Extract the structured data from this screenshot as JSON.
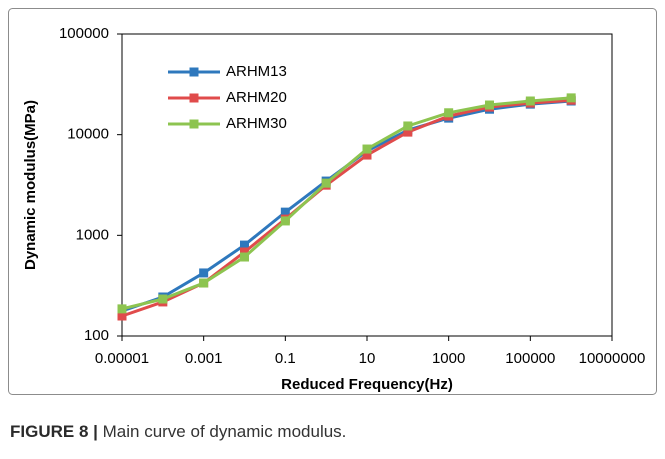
{
  "chart_data": {
    "type": "line",
    "x_label": "Reduced  Frequency(Hz)",
    "y_label": "Dynamic modulus(MPa)",
    "x": [
      1e-05,
      0.0001,
      0.001,
      0.01,
      0.1,
      1,
      10,
      100,
      1000,
      10000,
      100000,
      1000000
    ],
    "series": [
      {
        "name": "ARHM13",
        "color": "#2e78bd",
        "values": [
          177,
          244,
          423,
          800,
          1700,
          3460,
          6870,
          11100,
          14600,
          17900,
          20100,
          21600
        ]
      },
      {
        "name": "ARHM20",
        "color": "#e04b4b",
        "values": [
          158,
          218,
          336,
          683,
          1450,
          3150,
          6270,
          10600,
          15300,
          18800,
          20600,
          22000
        ]
      },
      {
        "name": "ARHM30",
        "color": "#8dc450",
        "values": [
          186,
          233,
          336,
          609,
          1390,
          3300,
          7200,
          12200,
          16500,
          19700,
          21600,
          23200
        ]
      }
    ],
    "xlim": [
      1e-05,
      10000000
    ],
    "xticks": [
      1e-05,
      0.001,
      0.1,
      10,
      1000,
      100000,
      10000000
    ],
    "ylim": [
      100,
      100000
    ],
    "yticks": [
      100,
      1000,
      10000,
      100000
    ],
    "xscale": "log",
    "yscale": "log",
    "grid": false,
    "legend": "upper left"
  },
  "caption": {
    "label": "FIGURE 8 |",
    "text": "Main curve of dynamic modulus."
  }
}
